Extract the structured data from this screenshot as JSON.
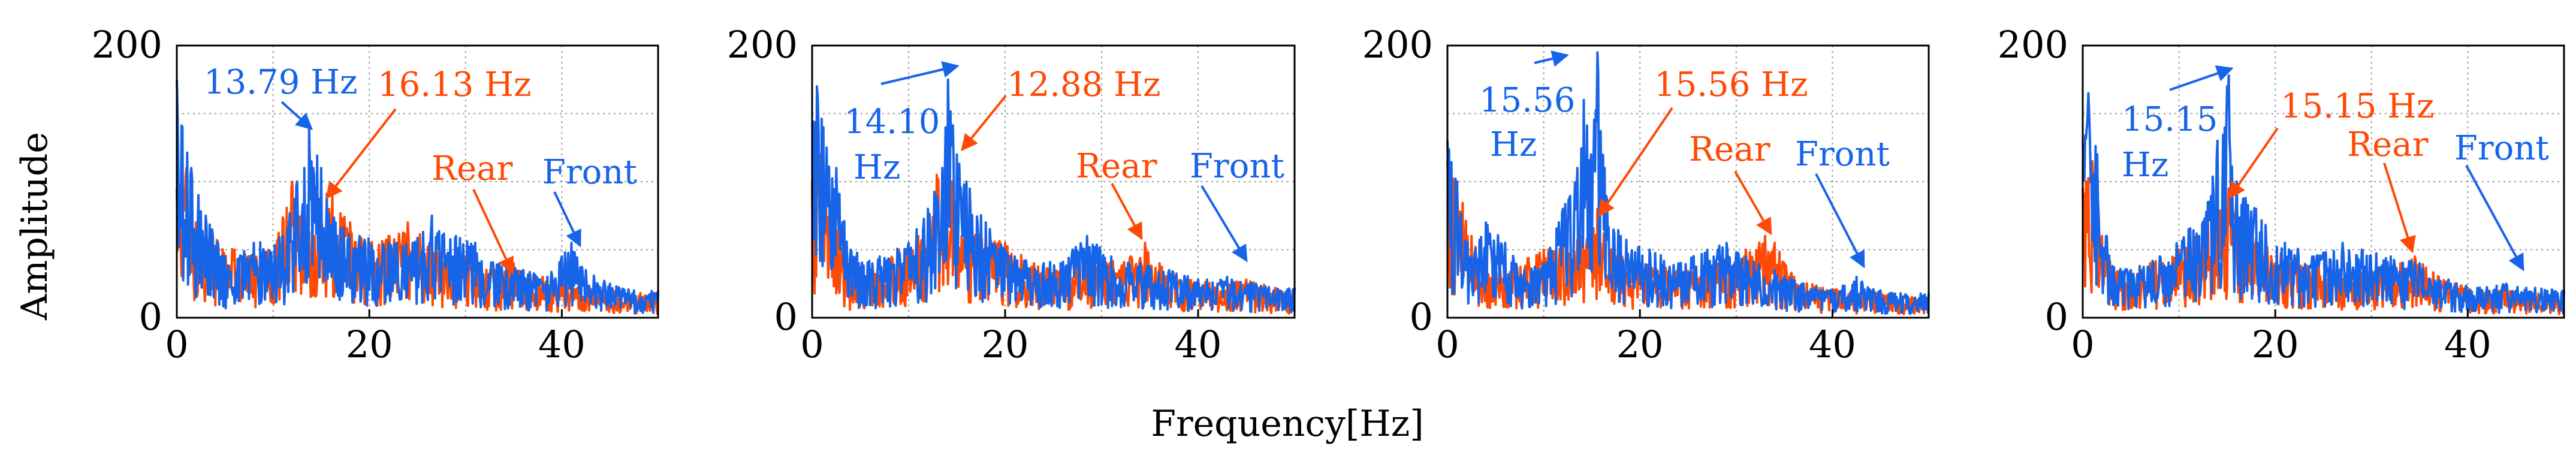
{
  "figure": {
    "ylabel": "Amplitude",
    "xlabel": "Frequency[Hz]"
  },
  "colors": {
    "front": "#1764e8",
    "rear": "#ff4a05",
    "grid": "#9a9a9a",
    "axis": "#000000"
  },
  "chart_data": [
    {
      "type": "line",
      "title": "",
      "xlabel": "Frequency[Hz]",
      "ylabel": "Amplitude",
      "xlim": [
        0,
        50
      ],
      "ylim": [
        0,
        200
      ],
      "xticks": [
        0,
        20,
        40
      ],
      "yticks": [
        0,
        200
      ],
      "grid": true,
      "series": [
        {
          "name": "Front",
          "color": "#1764e8",
          "peaks": [
            [
              0,
              175
            ],
            [
              0.6,
              140
            ],
            [
              1.5,
              110
            ],
            [
              3,
              75
            ],
            [
              5,
              45
            ],
            [
              8,
              55
            ],
            [
              11,
              60
            ],
            [
              12.5,
              100
            ],
            [
              13.79,
              140
            ],
            [
              15,
              110
            ],
            [
              16.5,
              70
            ],
            [
              19,
              60
            ],
            [
              22,
              55
            ],
            [
              24.5,
              55
            ],
            [
              26.5,
              75
            ],
            [
              29,
              60
            ],
            [
              31,
              55
            ],
            [
              33.5,
              40
            ],
            [
              36,
              35
            ],
            [
              38.5,
              30
            ],
            [
              40,
              45
            ],
            [
              41,
              55
            ],
            [
              42.5,
              35
            ],
            [
              45,
              25
            ],
            [
              47.5,
              20
            ],
            [
              50,
              20
            ]
          ]
        },
        {
          "name": "Rear",
          "color": "#ff4a05",
          "peaks": [
            [
              0,
              95
            ],
            [
              1,
              110
            ],
            [
              2,
              70
            ],
            [
              3.5,
              60
            ],
            [
              6,
              50
            ],
            [
              9,
              45
            ],
            [
              12,
              100
            ],
            [
              13,
              75
            ],
            [
              16.13,
              90
            ],
            [
              18,
              70
            ],
            [
              20,
              55
            ],
            [
              22,
              60
            ],
            [
              24,
              70
            ],
            [
              27,
              50
            ],
            [
              30,
              45
            ],
            [
              33,
              35
            ],
            [
              35,
              40
            ],
            [
              38,
              30
            ],
            [
              41,
              25
            ],
            [
              45,
              20
            ],
            [
              50,
              18
            ]
          ]
        }
      ],
      "annotations": [
        {
          "label": "13.79 Hz",
          "series": "Front"
        },
        {
          "label": "16.13 Hz",
          "series": "Rear"
        },
        {
          "label": "Rear",
          "series": "Rear"
        },
        {
          "label": "Front",
          "series": "Front"
        }
      ]
    },
    {
      "type": "line",
      "title": "",
      "xlabel": "Frequency[Hz]",
      "ylabel": "Amplitude",
      "xlim": [
        0,
        50
      ],
      "ylim": [
        0,
        200
      ],
      "xticks": [
        0,
        20,
        40
      ],
      "yticks": [
        0,
        200
      ],
      "grid": true,
      "series": [
        {
          "name": "Front",
          "color": "#1764e8",
          "peaks": [
            [
              0,
              140
            ],
            [
              0.5,
              170
            ],
            [
              1.2,
              140
            ],
            [
              2.5,
              110
            ],
            [
              4,
              50
            ],
            [
              7,
              45
            ],
            [
              10,
              55
            ],
            [
              12,
              80
            ],
            [
              13.5,
              110
            ],
            [
              14.1,
              175
            ],
            [
              15,
              120
            ],
            [
              16,
              100
            ],
            [
              18,
              70
            ],
            [
              21,
              45
            ],
            [
              24,
              40
            ],
            [
              27,
              50
            ],
            [
              28.5,
              60
            ],
            [
              31,
              45
            ],
            [
              34,
              40
            ],
            [
              37,
              35
            ],
            [
              40,
              28
            ],
            [
              43,
              30
            ],
            [
              46,
              25
            ],
            [
              50,
              22
            ]
          ]
        },
        {
          "name": "Rear",
          "color": "#ff4a05",
          "peaks": [
            [
              0,
              100
            ],
            [
              0.8,
              120
            ],
            [
              2,
              85
            ],
            [
              3.5,
              40
            ],
            [
              6,
              35
            ],
            [
              9,
              50
            ],
            [
              11,
              60
            ],
            [
              12.88,
              105
            ],
            [
              14.5,
              100
            ],
            [
              16,
              75
            ],
            [
              18,
              60
            ],
            [
              20,
              55
            ],
            [
              23,
              40
            ],
            [
              26,
              35
            ],
            [
              30,
              40
            ],
            [
              33,
              45
            ],
            [
              34.5,
              55
            ],
            [
              36,
              40
            ],
            [
              39,
              28
            ],
            [
              42,
              25
            ],
            [
              45,
              28
            ],
            [
              48,
              22
            ],
            [
              50,
              18
            ]
          ]
        }
      ],
      "annotations": [
        {
          "label": "14.10",
          "series": "Front"
        },
        {
          "label": "Hz",
          "series": "Front"
        },
        {
          "label": "12.88 Hz",
          "series": "Rear"
        },
        {
          "label": "Rear",
          "series": "Rear"
        },
        {
          "label": "Front",
          "series": "Front"
        }
      ]
    },
    {
      "type": "line",
      "title": "",
      "xlabel": "Frequency[Hz]",
      "ylabel": "Amplitude",
      "xlim": [
        0,
        50
      ],
      "ylim": [
        0,
        200
      ],
      "xticks": [
        0,
        20,
        40
      ],
      "yticks": [
        0,
        200
      ],
      "grid": true,
      "series": [
        {
          "name": "Front",
          "color": "#1764e8",
          "peaks": [
            [
              0,
              130
            ],
            [
              1,
              100
            ],
            [
              2.5,
              45
            ],
            [
              4,
              70
            ],
            [
              6,
              55
            ],
            [
              8,
              35
            ],
            [
              10,
              40
            ],
            [
              12,
              80
            ],
            [
              13.5,
              110
            ],
            [
              14.2,
              160
            ],
            [
              14.9,
              120
            ],
            [
              15.56,
              195
            ],
            [
              16.3,
              110
            ],
            [
              18,
              60
            ],
            [
              21,
              50
            ],
            [
              24,
              40
            ],
            [
              27,
              50
            ],
            [
              29,
              55
            ],
            [
              31,
              45
            ],
            [
              34,
              35
            ],
            [
              37,
              25
            ],
            [
              40,
              20
            ],
            [
              42.5,
              30
            ],
            [
              45,
              20
            ],
            [
              50,
              18
            ]
          ]
        },
        {
          "name": "Rear",
          "color": "#ff4a05",
          "peaks": [
            [
              0,
              115
            ],
            [
              1,
              100
            ],
            [
              2.5,
              60
            ],
            [
              4,
              35
            ],
            [
              7,
              40
            ],
            [
              10,
              50
            ],
            [
              12,
              55
            ],
            [
              14,
              60
            ],
            [
              15.56,
              80
            ],
            [
              17,
              50
            ],
            [
              20,
              40
            ],
            [
              24,
              35
            ],
            [
              28,
              40
            ],
            [
              31,
              50
            ],
            [
              33,
              60
            ],
            [
              34,
              55
            ],
            [
              36,
              30
            ],
            [
              39,
              22
            ],
            [
              42,
              20
            ],
            [
              46,
              18
            ],
            [
              50,
              15
            ]
          ]
        }
      ],
      "annotations": [
        {
          "label": "15.56",
          "series": "Front"
        },
        {
          "label": "Hz",
          "series": "Front"
        },
        {
          "label": "15.56 Hz",
          "series": "Rear"
        },
        {
          "label": "Rear",
          "series": "Rear"
        },
        {
          "label": "Front",
          "series": "Front"
        }
      ]
    },
    {
      "type": "line",
      "title": "",
      "xlabel": "Frequency[Hz]",
      "ylabel": "Amplitude",
      "xlim": [
        0,
        50
      ],
      "ylim": [
        0,
        200
      ],
      "xticks": [
        0,
        20,
        40
      ],
      "yticks": [
        0,
        200
      ],
      "grid": true,
      "series": [
        {
          "name": "Front",
          "color": "#1764e8",
          "peaks": [
            [
              0,
              125
            ],
            [
              0.6,
              165
            ],
            [
              1.5,
              120
            ],
            [
              2.5,
              60
            ],
            [
              5,
              35
            ],
            [
              8,
              45
            ],
            [
              11,
              65
            ],
            [
              13,
              85
            ],
            [
              14,
              130
            ],
            [
              15.15,
              178
            ],
            [
              16,
              100
            ],
            [
              18,
              80
            ],
            [
              21,
              55
            ],
            [
              24,
              45
            ],
            [
              27,
              55
            ],
            [
              29,
              50
            ],
            [
              32,
              45
            ],
            [
              35,
              40
            ],
            [
              38,
              28
            ],
            [
              41,
              22
            ],
            [
              44,
              25
            ],
            [
              47,
              22
            ],
            [
              50,
              20
            ]
          ]
        },
        {
          "name": "Rear",
          "color": "#ff4a05",
          "peaks": [
            [
              0,
              95
            ],
            [
              1,
              115
            ],
            [
              2,
              60
            ],
            [
              4,
              30
            ],
            [
              7,
              40
            ],
            [
              10,
              50
            ],
            [
              13,
              70
            ],
            [
              15.15,
              95
            ],
            [
              17,
              65
            ],
            [
              19,
              55
            ],
            [
              22,
              45
            ],
            [
              26,
              35
            ],
            [
              30,
              35
            ],
            [
              33,
              40
            ],
            [
              34.5,
              45
            ],
            [
              37,
              30
            ],
            [
              40,
              22
            ],
            [
              44,
              20
            ],
            [
              47,
              18
            ],
            [
              50,
              18
            ]
          ]
        }
      ],
      "annotations": [
        {
          "label": "15.15",
          "series": "Front"
        },
        {
          "label": "Hz",
          "series": "Front"
        },
        {
          "label": "15.15 Hz",
          "series": "Rear"
        },
        {
          "label": "Rear",
          "series": "Rear"
        },
        {
          "label": "Front",
          "series": "Front"
        }
      ]
    }
  ]
}
